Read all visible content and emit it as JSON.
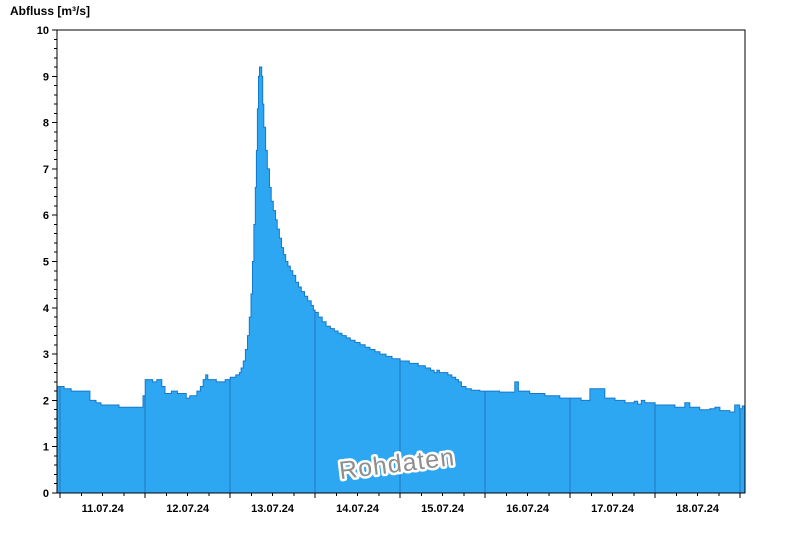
{
  "title": "Abfluss [m³/s]",
  "watermark": "Rohdaten",
  "colors": {
    "background": "#ffffff",
    "area_fill": "#2ea7f2",
    "area_stroke": "#1478cd",
    "day_gridline": "#1d64ab",
    "axis": "#000000",
    "text": "#000000",
    "watermark": "#8f8f8f"
  },
  "chart_data": {
    "type": "area",
    "title": "Abfluss [m³/s]",
    "ylabel": "Abfluss [m³/s]",
    "xlabel": "",
    "ylim": [
      0,
      10
    ],
    "y_major_ticks": [
      0,
      1,
      2,
      3,
      4,
      5,
      6,
      7,
      8,
      9,
      10
    ],
    "y_minor_step": 0.2,
    "x_span_hours": 194.3,
    "x_day_boundaries_hours": [
      0.9,
      24.9,
      48.9,
      72.9,
      96.9,
      120.9,
      144.9,
      168.9,
      192.9
    ],
    "x_minor_step_hours": 6,
    "x_tick_labels": [
      "11.07.24",
      "12.07.24",
      "13.07.24",
      "14.07.24",
      "15.07.24",
      "16.07.24",
      "17.07.24",
      "18.07.24"
    ],
    "x_label_centers_hours": [
      12.9,
      36.9,
      60.9,
      84.9,
      108.9,
      132.9,
      156.9,
      180.9
    ],
    "grid": "vertical-day-boundaries-inside-area",
    "legend": "none",
    "peak": {
      "value": 9.2,
      "approx_time": "13.07.24 ~08:00"
    },
    "series": [
      {
        "name": "Rohdaten",
        "unit": "m³/s",
        "step": true,
        "points": [
          [
            0,
            2.3
          ],
          [
            2,
            2.25
          ],
          [
            4,
            2.2
          ],
          [
            9.3,
            2.0
          ],
          [
            11,
            1.95
          ],
          [
            12.4,
            1.9
          ],
          [
            17.5,
            1.85
          ],
          [
            24.3,
            2.1
          ],
          [
            24.9,
            2.45
          ],
          [
            27,
            2.4
          ],
          [
            28.2,
            2.45
          ],
          [
            29.6,
            2.3
          ],
          [
            30.5,
            2.15
          ],
          [
            32.3,
            2.2
          ],
          [
            34,
            2.15
          ],
          [
            36.5,
            2.05
          ],
          [
            37.5,
            2.1
          ],
          [
            39.5,
            2.2
          ],
          [
            40.5,
            2.3
          ],
          [
            41.3,
            2.45
          ],
          [
            42,
            2.55
          ],
          [
            42.6,
            2.45
          ],
          [
            45,
            2.4
          ],
          [
            47.5,
            2.45
          ],
          [
            48.9,
            2.5
          ],
          [
            50.5,
            2.55
          ],
          [
            51.5,
            2.6
          ],
          [
            52,
            2.7
          ],
          [
            52.6,
            2.85
          ],
          [
            53.2,
            3.1
          ],
          [
            53.8,
            3.4
          ],
          [
            54.3,
            3.8
          ],
          [
            54.8,
            4.3
          ],
          [
            55.2,
            5.0
          ],
          [
            55.6,
            5.8
          ],
          [
            56,
            6.6
          ],
          [
            56.3,
            7.4
          ],
          [
            56.6,
            8.3
          ],
          [
            56.9,
            9.0
          ],
          [
            57.2,
            9.2
          ],
          [
            57.8,
            9.0
          ],
          [
            58.1,
            8.4
          ],
          [
            58.4,
            7.9
          ],
          [
            58.9,
            7.4
          ],
          [
            59.4,
            7.0
          ],
          [
            60,
            6.6
          ],
          [
            60.5,
            6.3
          ],
          [
            61.1,
            6.1
          ],
          [
            61.7,
            5.9
          ],
          [
            62.2,
            5.7
          ],
          [
            62.8,
            5.5
          ],
          [
            63.4,
            5.3
          ],
          [
            64,
            5.15
          ],
          [
            64.6,
            5.0
          ],
          [
            65.2,
            4.9
          ],
          [
            65.9,
            4.8
          ],
          [
            66.6,
            4.7
          ],
          [
            67.4,
            4.55
          ],
          [
            68.2,
            4.45
          ],
          [
            69,
            4.35
          ],
          [
            69.9,
            4.25
          ],
          [
            70.8,
            4.15
          ],
          [
            71.8,
            4.05
          ],
          [
            72.4,
            3.95
          ],
          [
            72.9,
            3.9
          ],
          [
            73.8,
            3.8
          ],
          [
            74.9,
            3.7
          ],
          [
            76,
            3.6
          ],
          [
            77.2,
            3.55
          ],
          [
            78.3,
            3.5
          ],
          [
            79.4,
            3.45
          ],
          [
            80.5,
            3.4
          ],
          [
            81.7,
            3.35
          ],
          [
            82.8,
            3.3
          ],
          [
            84.2,
            3.25
          ],
          [
            85.6,
            3.2
          ],
          [
            87,
            3.15
          ],
          [
            88.4,
            3.1
          ],
          [
            89.8,
            3.05
          ],
          [
            91.2,
            3.0
          ],
          [
            92.9,
            2.95
          ],
          [
            94.6,
            2.9
          ],
          [
            96.9,
            2.85
          ],
          [
            99.5,
            2.8
          ],
          [
            102,
            2.75
          ],
          [
            104,
            2.7
          ],
          [
            105.5,
            2.65
          ],
          [
            106.5,
            2.6
          ],
          [
            107.3,
            2.65
          ],
          [
            108,
            2.6
          ],
          [
            110.4,
            2.55
          ],
          [
            111.5,
            2.5
          ],
          [
            112.6,
            2.45
          ],
          [
            113.4,
            2.4
          ],
          [
            114.2,
            2.3
          ],
          [
            115.5,
            2.25
          ],
          [
            117,
            2.22
          ],
          [
            119.4,
            2.2
          ],
          [
            125,
            2.18
          ],
          [
            129.3,
            2.4
          ],
          [
            130.3,
            2.2
          ],
          [
            133.5,
            2.15
          ],
          [
            137.8,
            2.1
          ],
          [
            142,
            2.05
          ],
          [
            144.9,
            2.05
          ],
          [
            148,
            2.0
          ],
          [
            150.5,
            2.25
          ],
          [
            154.7,
            2.05
          ],
          [
            157.6,
            2.0
          ],
          [
            160.4,
            1.95
          ],
          [
            163,
            1.98
          ],
          [
            164,
            1.92
          ],
          [
            165,
            2.0
          ],
          [
            166,
            1.95
          ],
          [
            168.9,
            1.9
          ],
          [
            171.7,
            1.9
          ],
          [
            174.5,
            1.85
          ],
          [
            177.3,
            1.95
          ],
          [
            178.7,
            1.85
          ],
          [
            181.5,
            1.8
          ],
          [
            184.4,
            1.82
          ],
          [
            185.8,
            1.85
          ],
          [
            187.2,
            1.78
          ],
          [
            190,
            1.75
          ],
          [
            191.4,
            1.9
          ],
          [
            192.8,
            1.82
          ],
          [
            193.5,
            1.88
          ]
        ]
      }
    ]
  }
}
